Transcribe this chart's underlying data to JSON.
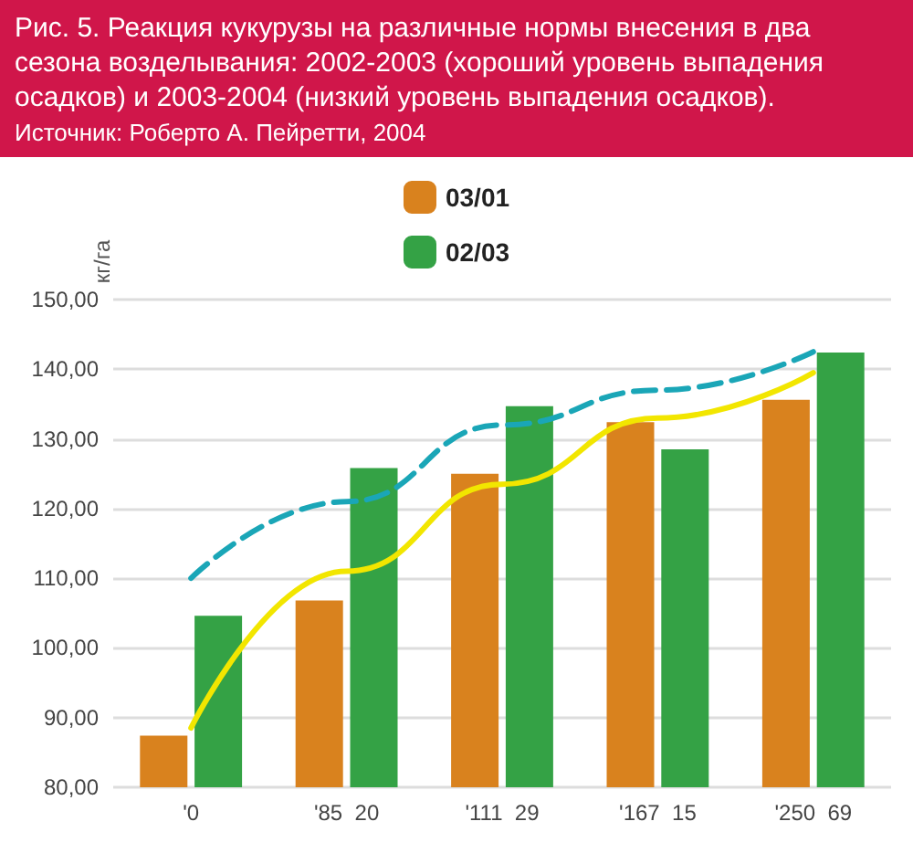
{
  "chart_data": {
    "type": "bar",
    "title": "Рис. 5. Реакция кукурузы на различные нормы внесения в два сезона возделывания: 2002-2003 (хороший уровень выпадения осадков) и 2003-2004 (низкий уровень выпадения осадков).",
    "subtitle": "Источник: Роберто А. Пейретти, 2004",
    "ylabel": "кг/га",
    "categories": [
      "'0",
      "'85  20",
      "'111  29",
      "'167  15",
      "'250  69"
    ],
    "series": [
      {
        "name": "03/01",
        "color": "#d9821e",
        "values": [
          87.4,
          106.8,
          125.0,
          132.4,
          135.6
        ]
      },
      {
        "name": "02/03",
        "color": "#34a245",
        "values": [
          104.6,
          125.8,
          134.7,
          128.5,
          142.4
        ]
      },
      {
        "type": "line",
        "color": "#f2e600",
        "line_style": "solid",
        "values": [
          88.5,
          111.0,
          123.5,
          133.0,
          139.5
        ]
      },
      {
        "type": "line",
        "color": "#1aa6b7",
        "line_style": "dashed",
        "values": [
          110.0,
          121.0,
          132.0,
          137.0,
          142.5
        ]
      }
    ],
    "ylim": [
      80,
      150
    ],
    "yticks": [
      {
        "value": 80,
        "label": "80,00"
      },
      {
        "value": 90,
        "label": "90,00"
      },
      {
        "value": 100,
        "label": "100,00"
      },
      {
        "value": 110,
        "label": "110,00"
      },
      {
        "value": 120,
        "label": "120,00"
      },
      {
        "value": 130,
        "label": "130,00"
      },
      {
        "value": 140,
        "label": "140,00"
      },
      {
        "value": 150,
        "label": "150,00"
      }
    ],
    "grid": "y",
    "legend": "top",
    "marker": "none"
  }
}
